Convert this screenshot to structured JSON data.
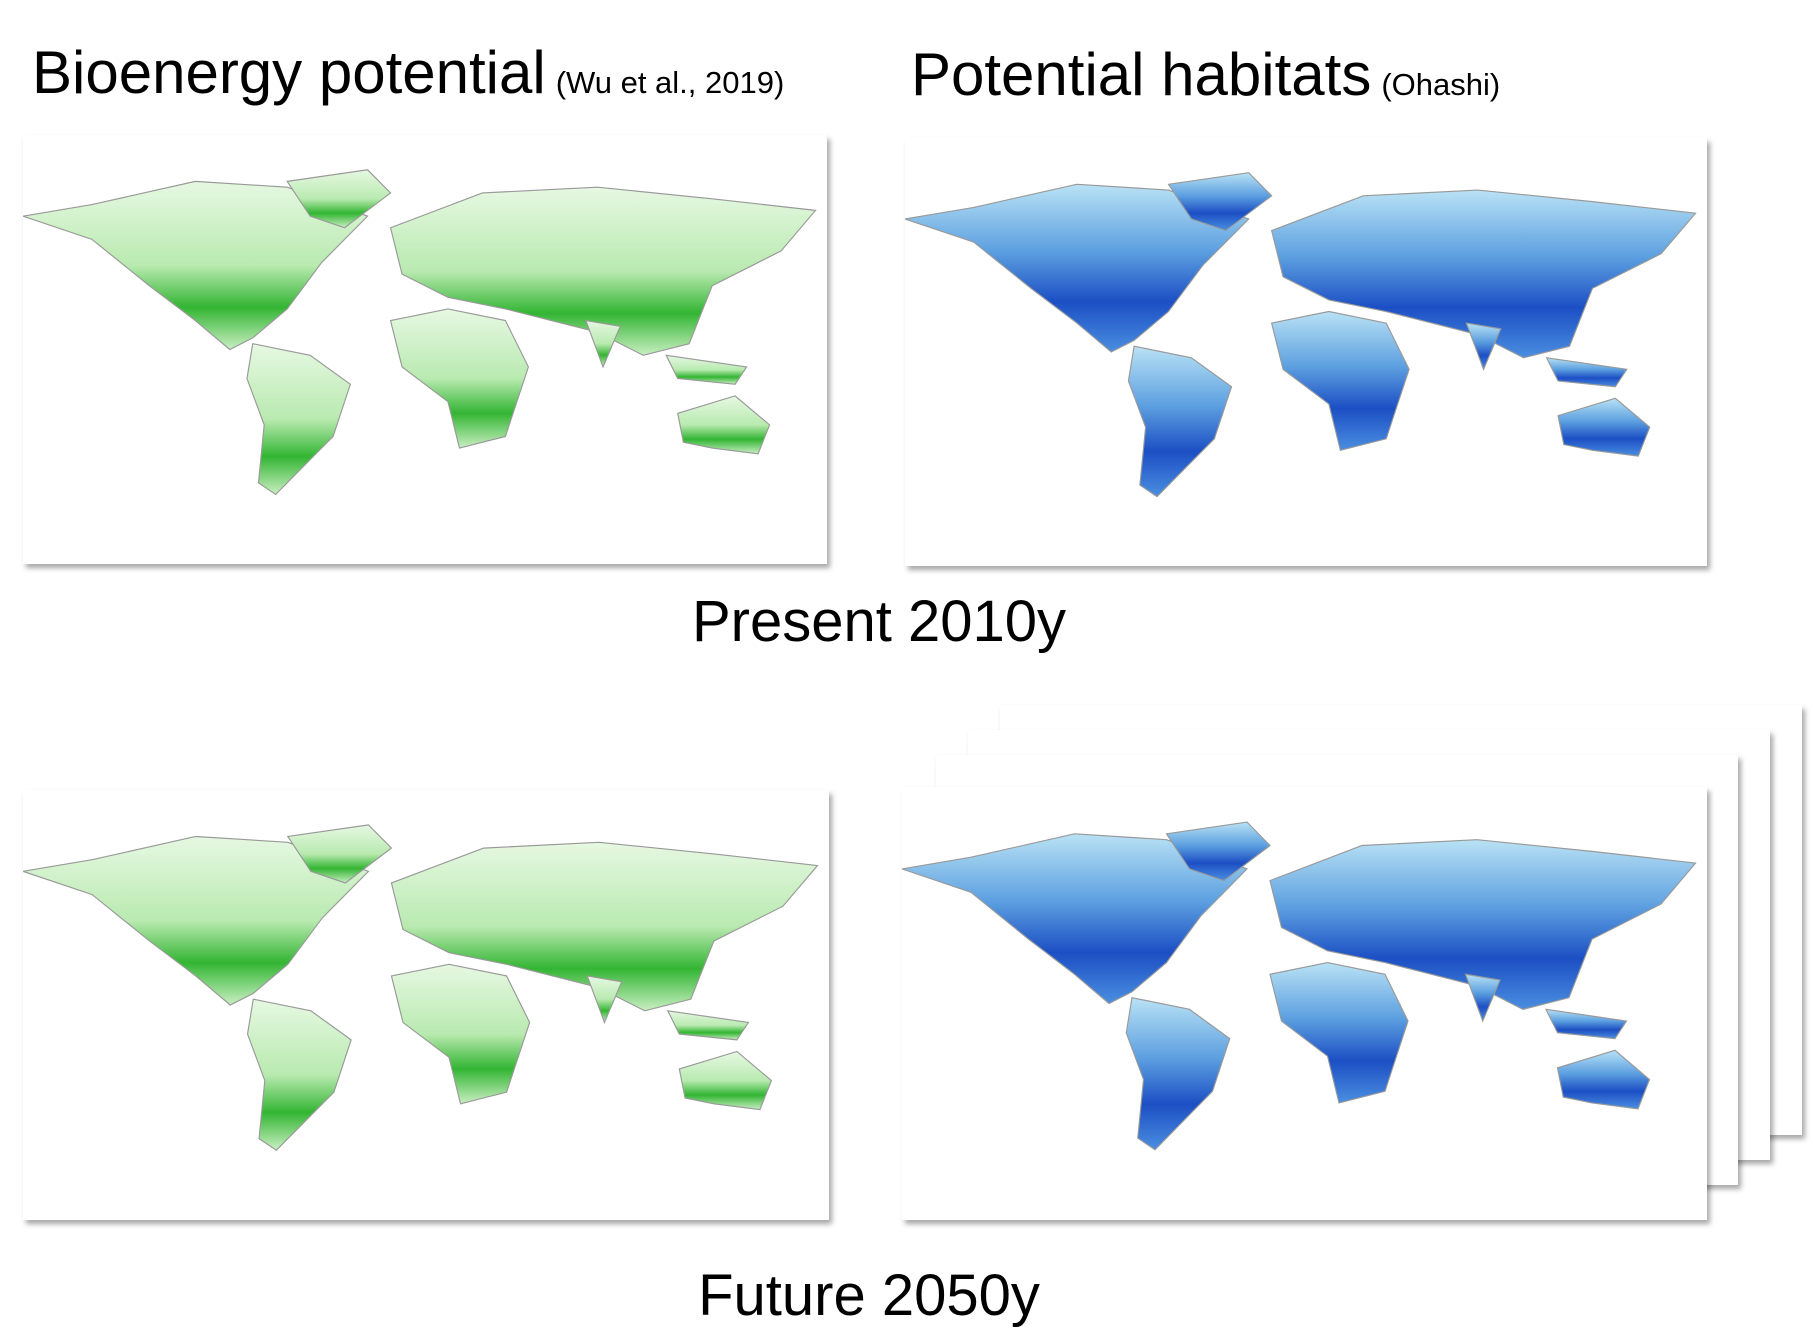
{
  "panels": {
    "bioenergy": {
      "title": "Bioenergy potential",
      "source": "(Wu et al., 2019)"
    },
    "habitats": {
      "title": "Potential habitats",
      "source": "(Ohashi)"
    }
  },
  "periods": [
    "Present 2010y",
    "Future 2050y"
  ]
}
